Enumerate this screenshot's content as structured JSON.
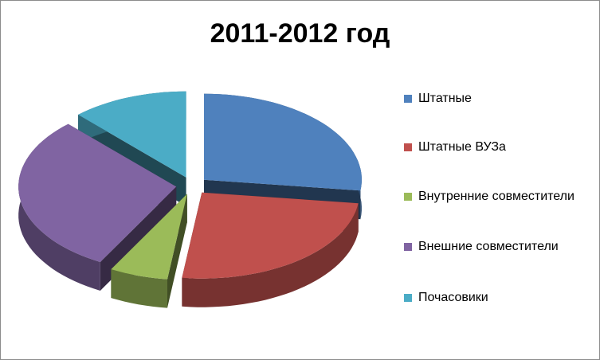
{
  "chart_data": {
    "type": "pie",
    "title": "2011-2012 год",
    "categories": [
      "Штатные",
      "Штатные ВУЗа",
      "Внутренние совместители",
      "Внешние совместители",
      "Почасовики"
    ],
    "values": [
      27,
      25,
      6,
      30,
      12
    ],
    "colors": [
      "#4f81bd",
      "#c0504d",
      "#9bbb59",
      "#8064a2",
      "#4bacc6"
    ],
    "legend": "right"
  }
}
